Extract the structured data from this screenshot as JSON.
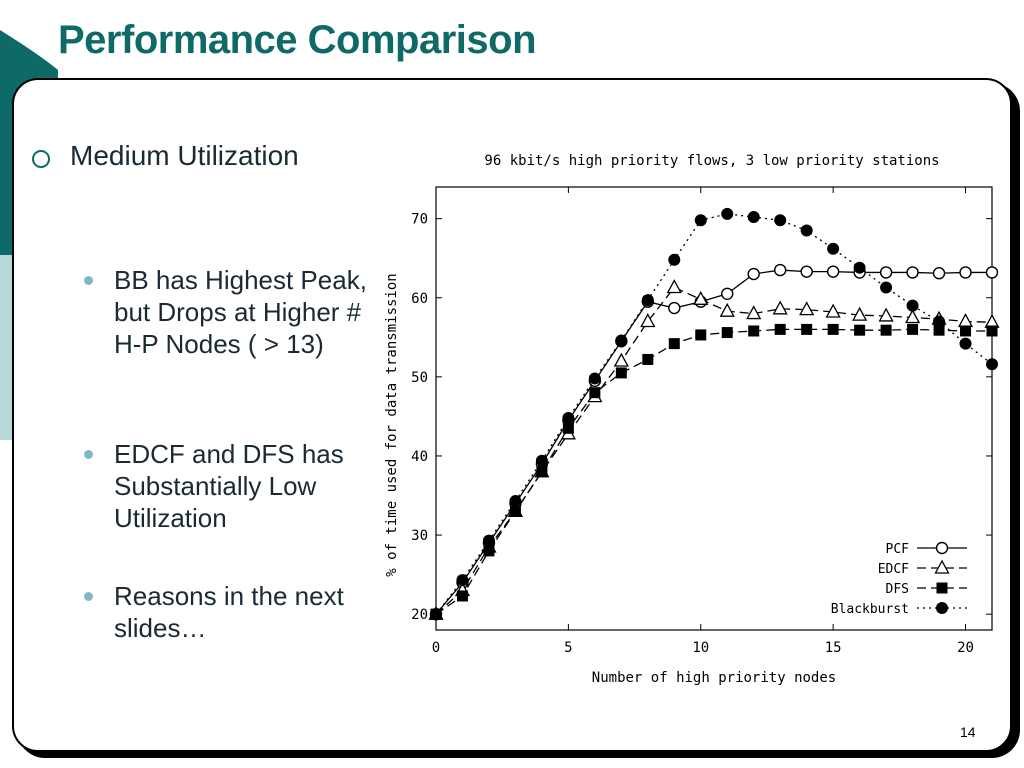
{
  "slide": {
    "title": "Performance Comparison",
    "page_number": "14",
    "bullet": "Medium Utilization",
    "sub_bullets": [
      "BB has Highest Peak, but Drops at Higher # H-P Nodes ( > 13)",
      "EDCF and DFS has Substantially Low Utilization",
      "Reasons in the next slides…"
    ],
    "colors": {
      "title": "#0e6a66",
      "accent": "#0e6a66",
      "sub_bullet": "#7fb8c9"
    }
  },
  "chart_data": {
    "type": "line",
    "title": "96 kbit/s high priority flows, 3 low priority stations",
    "xlabel": "Number of high priority nodes",
    "ylabel": "% of time used for data transmission",
    "xlim": [
      0,
      21
    ],
    "ylim": [
      18,
      74
    ],
    "xticks": [
      0,
      5,
      10,
      15,
      20
    ],
    "yticks": [
      20,
      30,
      40,
      50,
      60,
      70
    ],
    "legend_position": "bottom-right",
    "series": [
      {
        "name": "PCF",
        "marker": "circle-open",
        "line": "solid",
        "x": [
          0,
          1,
          2,
          3,
          4,
          5,
          6,
          7,
          8,
          9,
          10,
          11,
          12,
          13,
          14,
          15,
          16,
          17,
          18,
          19,
          20,
          21
        ],
        "values": [
          20,
          24,
          29,
          34,
          39,
          44.5,
          49.5,
          54.5,
          59.5,
          58.7,
          59.5,
          60.5,
          63,
          63.5,
          63.3,
          63.3,
          63.2,
          63.2,
          63.2,
          63.1,
          63.2,
          63.2
        ]
      },
      {
        "name": "EDCF",
        "marker": "triangle-open",
        "line": "dashed",
        "x": [
          0,
          1,
          2,
          3,
          4,
          5,
          6,
          7,
          8,
          9,
          10,
          11,
          12,
          13,
          14,
          15,
          16,
          17,
          18,
          19,
          20,
          21
        ],
        "values": [
          20,
          23,
          28.5,
          33,
          38,
          42.8,
          47.5,
          52,
          57,
          61.3,
          59.8,
          58.3,
          58,
          58.6,
          58.5,
          58.2,
          57.8,
          57.7,
          57.5,
          57.3,
          57,
          56.9
        ]
      },
      {
        "name": "DFS",
        "marker": "square-filled",
        "line": "dashed",
        "x": [
          0,
          1,
          2,
          3,
          4,
          5,
          6,
          7,
          8,
          9,
          10,
          11,
          12,
          13,
          14,
          15,
          16,
          17,
          18,
          19,
          20,
          21
        ],
        "values": [
          20,
          22.3,
          28,
          33,
          38,
          43.5,
          48,
          50.5,
          52.2,
          54.2,
          55.3,
          55.6,
          55.8,
          56,
          56,
          56,
          55.9,
          55.9,
          56,
          55.9,
          55.8,
          55.8
        ]
      },
      {
        "name": "Blackburst",
        "marker": "circle-filled",
        "line": "dotted",
        "x": [
          0,
          1,
          2,
          3,
          4,
          5,
          6,
          7,
          8,
          9,
          10,
          11,
          12,
          13,
          14,
          15,
          16,
          17,
          18,
          19,
          20,
          21
        ],
        "values": [
          20,
          24.3,
          29.3,
          34.3,
          39.4,
          44.8,
          49.8,
          54.6,
          59.7,
          64.8,
          69.8,
          70.6,
          70.2,
          69.8,
          68.5,
          66.2,
          63.8,
          61.3,
          59,
          57,
          54.2,
          51.6
        ]
      }
    ]
  }
}
